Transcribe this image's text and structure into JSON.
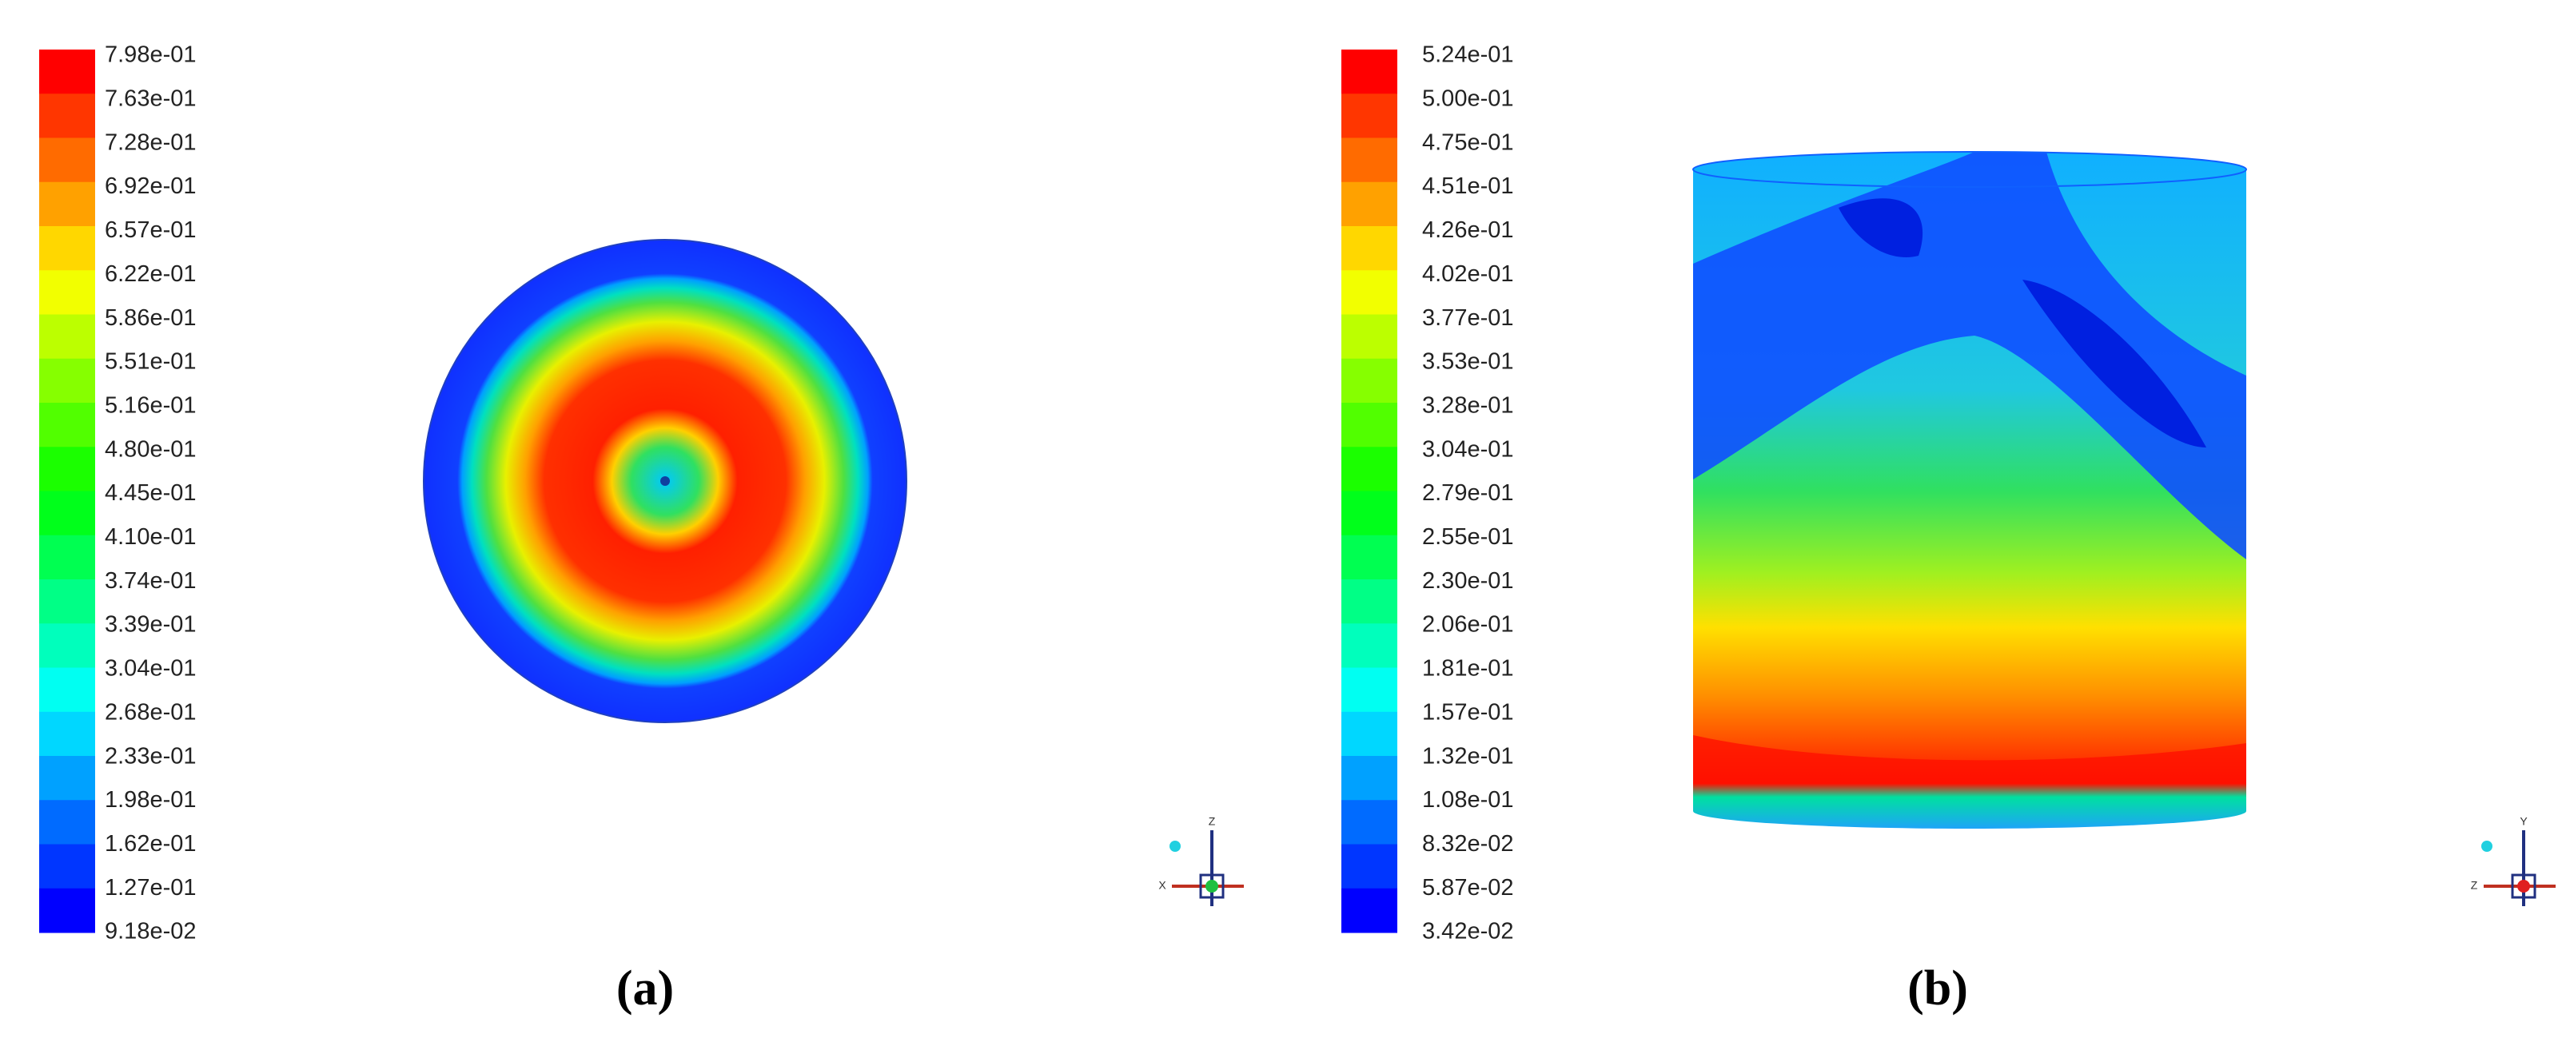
{
  "panels": [
    {
      "colorbar": {
        "labels": [
          "7.98e-01",
          "7.63e-01",
          "7.28e-01",
          "6.92e-01",
          "6.57e-01",
          "6.22e-01",
          "5.86e-01",
          "5.51e-01",
          "5.16e-01",
          "4.80e-01",
          "4.45e-01",
          "4.10e-01",
          "3.74e-01",
          "3.39e-01",
          "3.04e-01",
          "2.68e-01",
          "2.33e-01",
          "1.98e-01",
          "1.62e-01",
          "1.27e-01",
          "9.18e-02"
        ]
      },
      "axes": [
        "Z",
        "X"
      ],
      "caption": "(a)"
    },
    {
      "colorbar": {
        "labels": [
          "5.24e-01",
          "5.00e-01",
          "4.75e-01",
          "4.51e-01",
          "4.26e-01",
          "4.02e-01",
          "3.77e-01",
          "3.53e-01",
          "3.28e-01",
          "3.04e-01",
          "2.79e-01",
          "2.55e-01",
          "2.30e-01",
          "2.06e-01",
          "1.81e-01",
          "1.57e-01",
          "1.32e-01",
          "1.08e-01",
          "8.32e-02",
          "5.87e-02",
          "3.42e-02"
        ]
      },
      "axes": [
        "Y",
        "Z"
      ],
      "caption": "(b)"
    }
  ]
}
